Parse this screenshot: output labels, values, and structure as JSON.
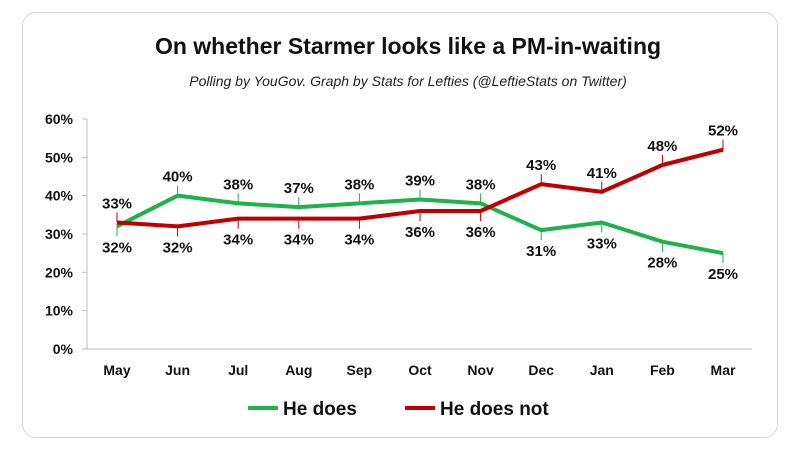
{
  "chart_data": {
    "type": "line",
    "title": "On whether Starmer looks like a PM-in-waiting",
    "subtitle": "Polling by YouGov. Graph by Stats for Lefties (@LeftieStats on Twitter)",
    "categories": [
      "May",
      "Jun",
      "Jul",
      "Aug",
      "Sep",
      "Oct",
      "Nov",
      "Dec",
      "Jan",
      "Feb",
      "Mar"
    ],
    "ylim": [
      0,
      60
    ],
    "yticks": [
      "0%",
      "10%",
      "20%",
      "30%",
      "40%",
      "50%",
      "60%"
    ],
    "ytick_values": [
      0,
      10,
      20,
      30,
      40,
      50,
      60
    ],
    "grid": false,
    "legend_position": "bottom",
    "series": [
      {
        "name": "He does",
        "color": "#1fb24a",
        "values": [
          32,
          40,
          38,
          37,
          38,
          39,
          38,
          31,
          33,
          28,
          25
        ]
      },
      {
        "name": "He does not",
        "color": "#c00000",
        "values": [
          33,
          32,
          34,
          34,
          34,
          36,
          36,
          43,
          41,
          48,
          52
        ]
      }
    ]
  }
}
